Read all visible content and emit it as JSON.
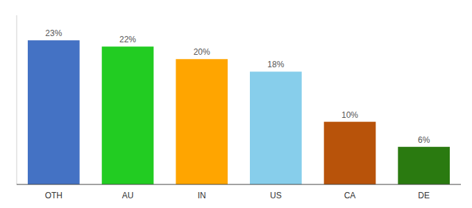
{
  "chart_data": {
    "type": "bar",
    "categories": [
      "OTH",
      "AU",
      "IN",
      "US",
      "CA",
      "DE"
    ],
    "values": [
      23,
      22,
      20,
      18,
      10,
      6
    ],
    "value_labels": [
      "23%",
      "22%",
      "20%",
      "18%",
      "10%",
      "6%"
    ],
    "colors": [
      "#4472C4",
      "#22CC22",
      "#FFA500",
      "#87CEEB",
      "#B8530A",
      "#2A7A10"
    ],
    "ylim": [
      0,
      27
    ],
    "data_labels": true,
    "tick_labels": "x",
    "grid": false
  }
}
